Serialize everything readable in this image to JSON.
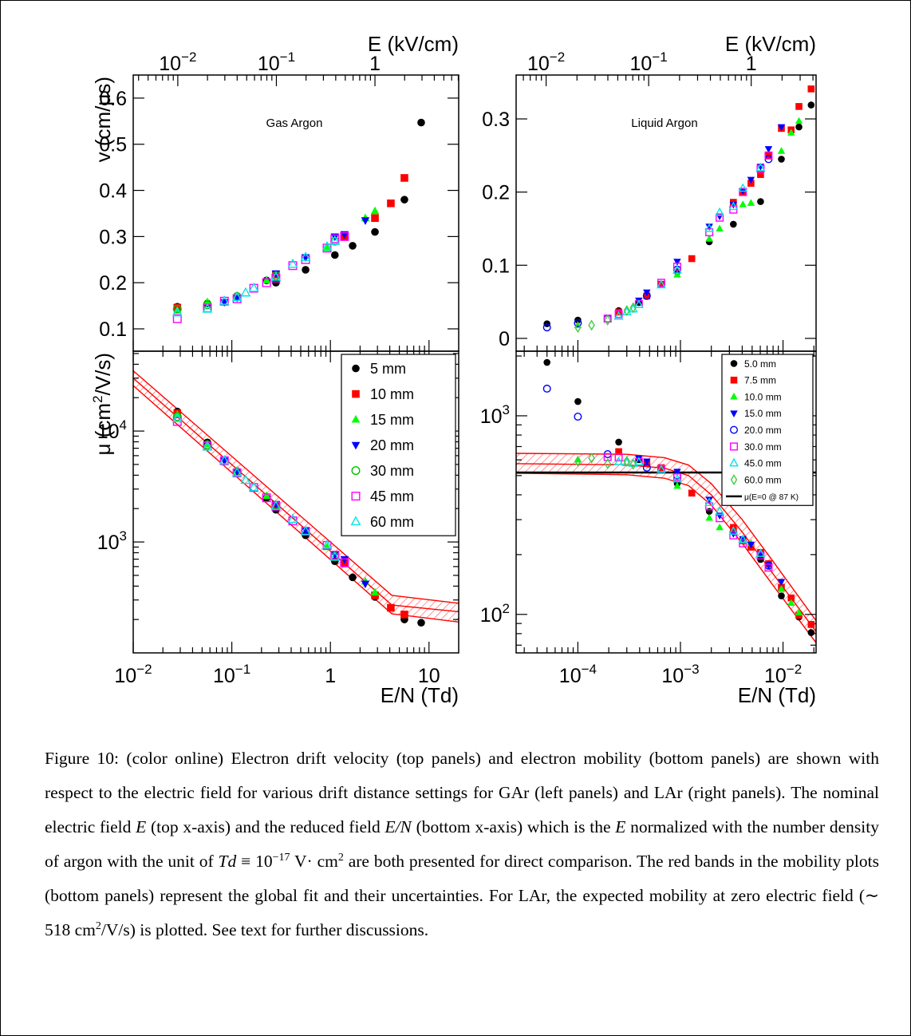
{
  "chart_data": [
    {
      "type": "scatter",
      "xlabel": "E/N (Td)",
      "x2label": "E (kV/cm)",
      "xlog": true,
      "xlim": [
        0.01,
        20
      ],
      "xticks": [
        {
          "value": 0.01,
          "label": "10",
          "exponent": "−2"
        },
        {
          "value": 0.1,
          "label": "10",
          "exponent": "−1"
        },
        1,
        10
      ],
      "x2lim": [
        0.00353,
        7.07
      ],
      "x2ticks": [
        {
          "value": 0.01,
          "label": "10",
          "exponent": "−2"
        },
        {
          "value": 0.1,
          "label": "10",
          "exponent": "−1"
        },
        1
      ],
      "x": [
        0.028,
        0.0565,
        0.084,
        0.113,
        0.138,
        0.167,
        0.225,
        0.28,
        0.415,
        0.56,
        0.925,
        1.11,
        1.39,
        1.68,
        2.26,
        2.83,
        4.1,
        5.63,
        8.33
      ],
      "top": {
        "ylabel": "v (cm/μs)",
        "annotation": "Gas Argon",
        "log": false,
        "ylim": [
          0.0516,
          0.65
        ],
        "yticks": [
          0.1,
          0.2,
          0.3,
          0.4,
          0.5,
          0.6
        ]
      },
      "bottom": {
        "ylabel": [
          "μ (cm",
          "2",
          "/V/s)"
        ],
        "log": true,
        "ylim": [
          100,
          52500
        ],
        "yticks": [
          {
            "value": 1000,
            "label": "10",
            "exponent": "3"
          },
          {
            "value": 10000,
            "label": "10",
            "exponent": "4"
          }
        ],
        "legend": "upper right",
        "fit": {
          "color": "#ff0000",
          "x": [
            0.01,
            4.2,
            20
          ],
          "center": [
            30000,
            270,
            235
          ],
          "upper": [
            35000,
            330,
            280
          ],
          "lower": [
            25700,
            225,
            190
          ]
        }
      },
      "series": [
        {
          "name": "5 mm",
          "color": "#000000",
          "marker": "circle",
          "v": [
            0.148,
            0.155,
            null,
            null,
            null,
            null,
            0.205,
            0.2,
            null,
            0.228,
            null,
            0.26,
            null,
            0.28,
            null,
            0.31,
            null,
            0.38,
            0.547
          ],
          "mu": [
            15000,
            7900,
            null,
            null,
            null,
            null,
            2500,
            1950,
            null,
            1150,
            null,
            670,
            null,
            480,
            null,
            320,
            null,
            200,
            187
          ]
        },
        {
          "name": "10 mm",
          "color": "#ff0000",
          "marker": "square",
          "v": [
            0.146,
            null,
            null,
            null,
            null,
            null,
            null,
            0.218,
            null,
            null,
            null,
            null,
            0.3,
            null,
            null,
            0.34,
            0.372,
            0.427,
            null
          ],
          "mu": [
            14500,
            null,
            null,
            null,
            null,
            null,
            null,
            2150,
            null,
            null,
            null,
            null,
            640,
            null,
            null,
            330,
            255,
            222,
            null
          ]
        },
        {
          "name": "15 mm",
          "color": "#00ff00",
          "marker": "triangle-up",
          "v": [
            0.14,
            0.158,
            null,
            0.172,
            null,
            null,
            0.205,
            null,
            null,
            null,
            0.275,
            null,
            null,
            null,
            0.34,
            0.355,
            null,
            null,
            null
          ],
          "mu": [
            14000,
            7600,
            null,
            4400,
            null,
            null,
            2600,
            null,
            null,
            null,
            900,
            null,
            null,
            null,
            440,
            350,
            null,
            null,
            null
          ]
        },
        {
          "name": "20 mm",
          "color": "#0000ff",
          "marker": "triangle-down",
          "v": [
            null,
            null,
            0.158,
            0.168,
            null,
            null,
            null,
            0.22,
            null,
            0.255,
            null,
            0.3,
            0.305,
            null,
            0.335,
            null,
            null,
            null,
            null
          ],
          "mu": [
            null,
            null,
            5400,
            4300,
            null,
            null,
            null,
            2200,
            null,
            1270,
            null,
            770,
            700,
            null,
            420,
            null,
            null,
            null,
            null
          ]
        },
        {
          "name": "30 mm",
          "color": "#00c000",
          "marker": "open-circle",
          "v": [
            0.143,
            0.152,
            null,
            0.17,
            null,
            null,
            null,
            0.215,
            null,
            null,
            null,
            0.29,
            null,
            null,
            null,
            null,
            null,
            null,
            null
          ],
          "mu": [
            13500,
            7500,
            null,
            4300,
            null,
            null,
            null,
            2150,
            null,
            null,
            null,
            740,
            null,
            null,
            null,
            null,
            null,
            null,
            null
          ]
        },
        {
          "name": "45 mm",
          "color": "#ff00ff",
          "marker": "open-square",
          "v": [
            0.122,
            0.145,
            0.16,
            0.165,
            null,
            0.188,
            0.2,
            0.21,
            0.237,
            0.25,
            0.275,
            0.295,
            0.3,
            null,
            null,
            null,
            null,
            null,
            null
          ],
          "mu": [
            12200,
            7300,
            5400,
            4200,
            null,
            3100,
            2500,
            2100,
            1550,
            1250,
            930,
            760,
            650,
            null,
            null,
            null,
            null,
            null,
            null
          ]
        },
        {
          "name": "60 mm",
          "color": "#00e5e5",
          "marker": "open-triangle-up",
          "v": [
            0.135,
            0.143,
            0.16,
            0.168,
            0.178,
            0.188,
            null,
            0.212,
            0.24,
            0.255,
            0.278,
            0.29,
            null,
            null,
            null,
            null,
            null,
            null,
            null
          ],
          "mu": [
            13000,
            7200,
            5400,
            4200,
            3600,
            3100,
            null,
            2100,
            1600,
            1250,
            940,
            730,
            null,
            null,
            null,
            null,
            null,
            null,
            null
          ]
        }
      ]
    },
    {
      "type": "scatter",
      "xlabel": "E/N (Td)",
      "x2label": "E (kV/cm)",
      "xlog": true,
      "xlim": [
        2.5e-05,
        0.021
      ],
      "xticks": [
        {
          "value": 0.0001,
          "label": "10",
          "exponent": "−4"
        },
        {
          "value": 0.001,
          "label": "10",
          "exponent": "−3"
        },
        {
          "value": 0.01,
          "label": "10",
          "exponent": "−2"
        }
      ],
      "x2lim": [
        0.0051,
        4.29
      ],
      "x2ticks": [
        {
          "value": 0.01,
          "label": "10",
          "exponent": "−2"
        },
        {
          "value": 0.1,
          "label": "10",
          "exponent": "−1"
        },
        1
      ],
      "x": [
        5e-05,
        0.0001,
        0.000136,
        0.000195,
        0.00025,
        0.0003,
        0.000346,
        0.000393,
        0.00047,
        0.00065,
        0.00093,
        0.00129,
        0.00191,
        0.00241,
        0.00328,
        0.00406,
        0.00487,
        0.00604,
        0.00723,
        0.00964,
        0.012,
        0.0143,
        0.0188
      ],
      "top": {
        "annotation": "Liquid Argon",
        "log": false,
        "ylim": [
          -0.0175,
          0.36
        ],
        "yticks": [
          0,
          0.1,
          0.2,
          0.3
        ]
      },
      "bottom": {
        "log": true,
        "ylim": [
          64,
          2115
        ],
        "yticks": [
          {
            "value": 100,
            "label": "10",
            "exponent": "2"
          },
          {
            "value": 1000,
            "label": "10",
            "exponent": "3"
          }
        ],
        "legend": "upper right",
        "fit": {
          "color": "#ff0000",
          "x": [
            2.5e-05,
            0.0003,
            0.0007,
            0.0012,
            0.002,
            0.004,
            0.008,
            0.021
          ],
          "center": [
            574,
            566,
            545,
            500,
            400,
            260,
            160,
            82
          ],
          "upper": [
            647,
            640,
            615,
            565,
            455,
            300,
            185,
            93
          ],
          "lower": [
            514,
            505,
            485,
            445,
            355,
            228,
            140,
            72
          ]
        },
        "reference": {
          "name": "μ(E=0 @ 87 K)",
          "value": 518,
          "color": "#000000"
        }
      },
      "series": [
        {
          "name": "5.0 mm",
          "color": "#000000",
          "marker": "circle",
          "v": [
            0.02,
            0.025,
            null,
            null,
            0.038,
            null,
            null,
            0.049,
            0.058,
            null,
            0.091,
            null,
            0.132,
            null,
            0.156,
            null,
            null,
            0.187,
            null,
            0.245,
            null,
            0.289,
            0.319
          ],
          "mu": [
            1857,
            1180,
            null,
            null,
            737,
            null,
            null,
            601,
            574,
            null,
            456,
            null,
            330,
            null,
            262,
            null,
            null,
            189,
            null,
            124,
            null,
            97,
            81
          ]
        },
        {
          "name": "7.5 mm",
          "color": "#ff0000",
          "marker": "square",
          "v": [
            null,
            null,
            null,
            null,
            0.036,
            null,
            null,
            null,
            0.058,
            0.074,
            null,
            0.109,
            null,
            null,
            0.186,
            0.2,
            0.212,
            0.224,
            0.25,
            0.287,
            0.285,
            0.317,
            0.341
          ],
          "mu": [
            null,
            null,
            null,
            null,
            660,
            null,
            null,
            null,
            575,
            548,
            null,
            408,
            null,
            null,
            274,
            235,
            218,
            205,
            180,
            137,
            121,
            99,
            89
          ]
        },
        {
          "name": "10.0 mm",
          "color": "#00ff00",
          "marker": "triangle-up",
          "v": [
            null,
            0.018,
            null,
            null,
            null,
            null,
            null,
            null,
            null,
            null,
            0.087,
            null,
            0.136,
            0.15,
            null,
            0.183,
            0.185,
            null,
            null,
            0.256,
            0.281,
            0.297,
            null
          ],
          "mu": [
            null,
            601,
            null,
            null,
            null,
            null,
            null,
            null,
            null,
            null,
            443,
            null,
            306,
            274,
            null,
            236,
            228,
            null,
            null,
            134,
            114,
            102,
            null
          ]
        },
        {
          "name": "15.0 mm",
          "color": "#0000ff",
          "marker": "triangle-down",
          "v": [
            null,
            null,
            null,
            null,
            null,
            null,
            null,
            0.052,
            0.063,
            null,
            0.105,
            null,
            0.153,
            0.167,
            0.183,
            0.202,
            0.217,
            0.235,
            0.259,
            0.289,
            null,
            null,
            null
          ],
          "mu": [
            null,
            null,
            null,
            null,
            null,
            null,
            null,
            612,
            590,
            null,
            524,
            null,
            379,
            315,
            255,
            240,
            225,
            202,
            176,
            146,
            null,
            null,
            null
          ]
        },
        {
          "name": "20.0 mm",
          "color": "#0000ff",
          "marker": "open-circle",
          "v": [
            0.015,
            0.021,
            null,
            0.027,
            null,
            null,
            null,
            null,
            0.058,
            null,
            0.094,
            null,
            null,
            null,
            null,
            null,
            null,
            null,
            0.245,
            null,
            null,
            null,
            null
          ],
          "mu": [
            1370,
            990,
            null,
            641,
            null,
            null,
            null,
            null,
            548,
            null,
            500,
            null,
            null,
            null,
            null,
            null,
            null,
            null,
            176,
            null,
            null,
            null,
            null
          ]
        },
        {
          "name": "30.0 mm",
          "color": "#ff00ff",
          "marker": "open-square",
          "v": [
            null,
            null,
            null,
            0.027,
            0.033,
            null,
            null,
            0.047,
            null,
            0.076,
            0.098,
            null,
            0.145,
            0.165,
            0.176,
            0.2,
            null,
            0.232,
            0.25,
            null,
            null,
            null,
            null
          ],
          "mu": [
            null,
            null,
            null,
            620,
            618,
            null,
            null,
            585,
            null,
            540,
            490,
            null,
            350,
            305,
            250,
            228,
            null,
            198,
            172,
            null,
            null,
            null,
            null
          ]
        },
        {
          "name": "45.0 mm",
          "color": "#00e5e5",
          "marker": "open-triangle-up",
          "v": [
            null,
            null,
            null,
            null,
            0.03,
            0.036,
            0.04,
            0.046,
            null,
            0.073,
            0.093,
            null,
            0.15,
            0.172,
            0.18,
            0.205,
            null,
            0.233,
            null,
            null,
            null,
            null,
            null
          ],
          "mu": [
            null,
            null,
            null,
            null,
            585,
            580,
            575,
            585,
            null,
            535,
            480,
            null,
            365,
            330,
            262,
            238,
            null,
            202,
            null,
            null,
            null,
            null,
            null
          ]
        },
        {
          "name": "60.0 mm",
          "color": "#44cc44",
          "marker": "open-diamond",
          "v": [
            null,
            0.015,
            0.018,
            0.025,
            null,
            0.038,
            0.042,
            null,
            null,
            null,
            null,
            null,
            null,
            null,
            null,
            null,
            null,
            null,
            null,
            null,
            null,
            null,
            null
          ],
          "mu": [
            null,
            590,
            612,
            574,
            null,
            590,
            570,
            null,
            null,
            null,
            null,
            null,
            null,
            null,
            null,
            null,
            null,
            null,
            null,
            null,
            null,
            null,
            null
          ]
        }
      ]
    }
  ],
  "caption": [
    "Figure 10: (color online) Electron drift velocity (top panels) and electron mobility (bottom panels) are shown with respect to the electric field for various drift distance settings for GAr (left panels) and LAr (right panels). The nominal electric field ",
    "E",
    " (top x-axis) and the reduced field ",
    "E/N",
    " (bottom x-axis) which is the ",
    "E",
    " normalized with the number density of argon with the unit of ",
    "Td",
    " ≡ 10",
    "−17",
    " V· cm",
    "2",
    " are both presented for direct comparison. The red bands in the mobility plots (bottom panels) represent the global fit and their uncertainties. For LAr, the expected mobility at zero electric field (∼ 518 cm",
    "2",
    "/V/s) is plotted. See text for further discussions."
  ]
}
